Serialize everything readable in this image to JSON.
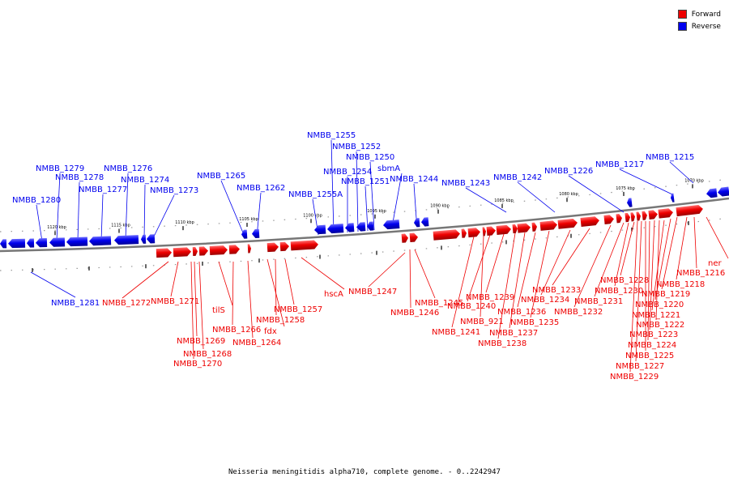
{
  "legend": {
    "forward": {
      "label": "Forward",
      "color": "#ee0000"
    },
    "reverse": {
      "label": "Reverse",
      "color": "#0000ee"
    }
  },
  "caption": "Neisseria meningitidis alpha710, complete genome. - 0..2242947",
  "ticks": [
    "1070 kbp",
    "1075 kbp",
    "1080 kbp",
    "1085 kbp",
    "1090 kbp",
    "1095 kbp",
    "1100 kbp",
    "1105 kbp",
    "1110 kbp",
    "1115 kbp",
    "1120 kbp"
  ],
  "reverse_labels": [
    "NMBB_1215",
    "NMBB_1217",
    "NMBB_1226",
    "NMBB_1242",
    "NMBB_1243",
    "NMBB_1244",
    "sbmA",
    "NMBB_1250",
    "NMBB_1251",
    "NMBB_1252",
    "NMBB_1254",
    "NMBB_1255",
    "NMBB_1255A",
    "NMBB_1262",
    "NMBB_1265",
    "NMBB_1273",
    "NMBB_1274",
    "NMBB_1276",
    "NMBB_1277",
    "NMBB_1278",
    "NMBB_1279",
    "NMBB_1280",
    "NMBB_1281"
  ],
  "forward_labels": [
    "ner",
    "NMBB_1216",
    "NMBB_1218",
    "NMBB_1219",
    "NMBB_1220",
    "NMBB_1221",
    "NMBB_1222",
    "NMBB_1223",
    "NMBB_1224",
    "NMBB_1225",
    "NMBB_1227",
    "NMBB_1228",
    "NMBB_1229",
    "NMBB_1230",
    "NMBB_1231",
    "NMBB_1232",
    "NMBB_1233",
    "NMBB_1234",
    "NMBB_1235",
    "NMBB_1236",
    "NMBB_1237",
    "NMBB_1238",
    "NMBB_1239",
    "NMBB_1240",
    "NMBB_921",
    "NMBB_1241",
    "NMBB_1245",
    "NMBB_1246",
    "NMBB_1247",
    "hscA",
    "NMBB_1257",
    "NMBB_1258",
    "fdx",
    "NMBB_1264",
    "NMBB_1266",
    "tilS",
    "NMBB_1268",
    "NMBB_1269",
    "NMBB_1270",
    "NMBB_1271",
    "NMBB_1272"
  ]
}
